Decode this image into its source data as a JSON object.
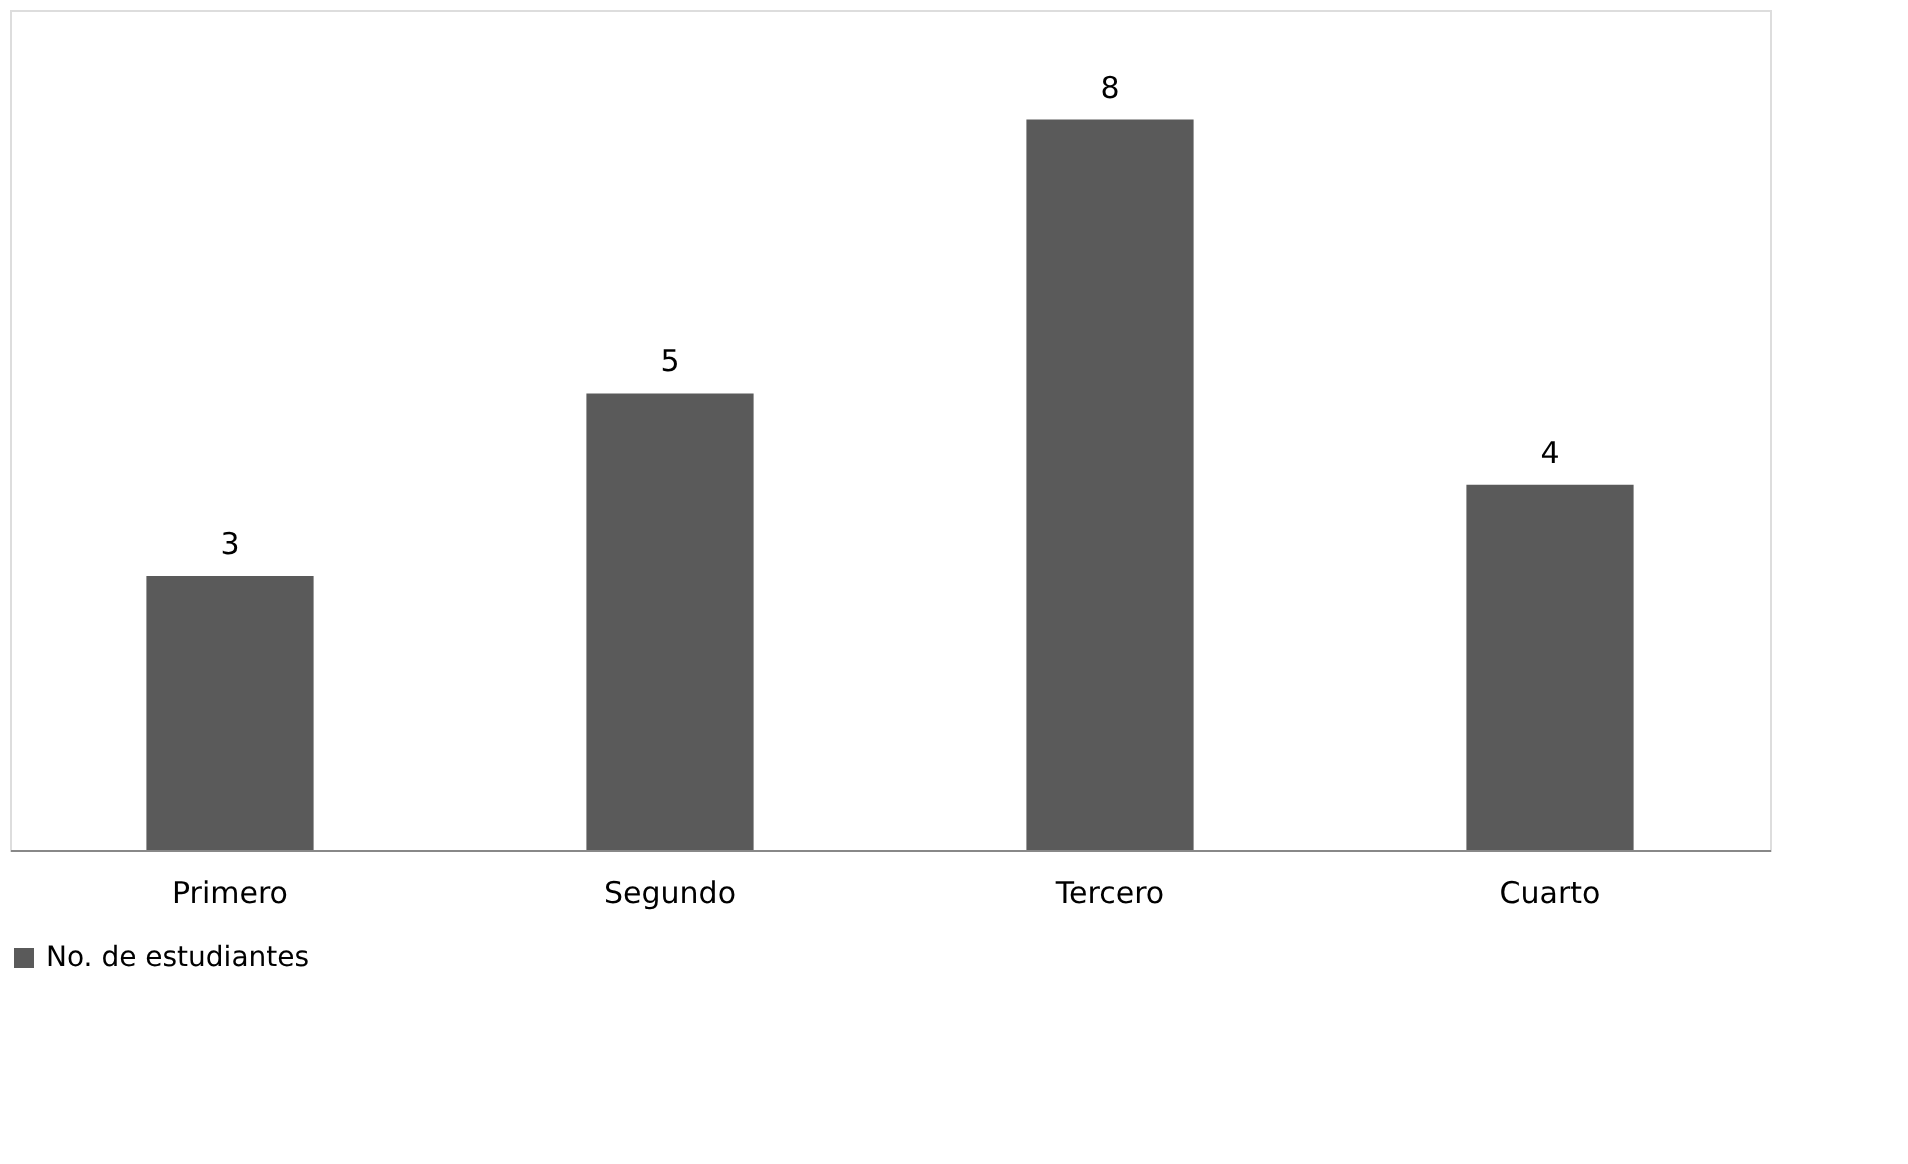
{
  "chart_data": {
    "type": "bar",
    "categories": [
      "Primero",
      "Segundo",
      "Tercero",
      "Cuarto"
    ],
    "series": [
      {
        "name": "No. de estudiantes",
        "color": "#5a5a5a",
        "values": [
          3,
          5,
          8,
          4
        ]
      }
    ],
    "ylim": [
      0,
      9.2
    ],
    "data_labels": true,
    "legend": "bottom",
    "grid": false,
    "tick_labels": "x"
  }
}
